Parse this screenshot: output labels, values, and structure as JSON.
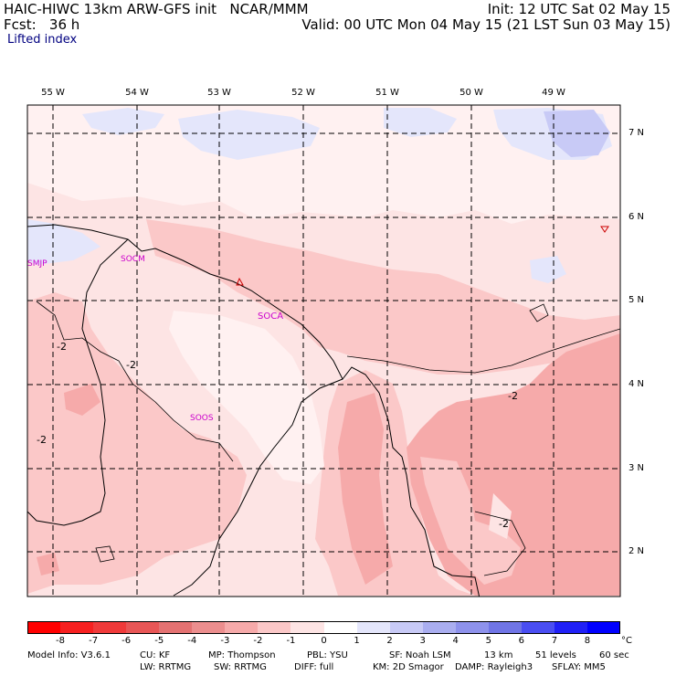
{
  "header": {
    "line1_left": "HAIC-HIWC 13km ARW-GFS init   NCAR/MMM",
    "line1_right": "Init: 12 UTC Sat 02 May 15",
    "line2_left": "Fcst:   36 h",
    "line2_right": "Valid: 00 UTC Mon 04 May 15 (21 LST Sun 03 May 15)",
    "field": "Lifted index"
  },
  "map": {
    "lon_labels": [
      "55 W",
      "54 W",
      "53 W",
      "52 W",
      "51 W",
      "50 W",
      "49 W"
    ],
    "lat_labels": [
      "7 N",
      "6 N",
      "5 N",
      "4 N",
      "3 N",
      "2 N"
    ],
    "stations": [
      "SMJP",
      "SOCM",
      "SOCA",
      "SOOS"
    ],
    "contour_labels": [
      "-2",
      "-2",
      "-2",
      "-2",
      "-2"
    ],
    "colors": {
      "land_neg1": "#fde4e4",
      "neg2": "#fbc8c8",
      "neg3": "#f6aaaa",
      "pos1": "#e4e6fb",
      "pos2": "#c8caf6",
      "station": "#cc00cc"
    }
  },
  "colorbar": {
    "labels": [
      "-8",
      "-7",
      "-6",
      "-5",
      "-4",
      "-3",
      "-2",
      "-1",
      "0",
      "1",
      "2",
      "3",
      "4",
      "5",
      "6",
      "7",
      "8"
    ],
    "unit": "°C",
    "colors": [
      "#ff0000",
      "#f72020",
      "#f03a3a",
      "#e85656",
      "#e47272",
      "#ec8e8e",
      "#f6aaaa",
      "#fbc8c8",
      "#fde4e4",
      "#ffffff",
      "#e4e6fb",
      "#c8caf6",
      "#aaaef0",
      "#8e92ec",
      "#7075e6",
      "#4a4ef2",
      "#2020f6",
      "#0000ff"
    ]
  },
  "info": {
    "line1": [
      "Model Info: V3.6.1",
      "CU: KF",
      "MP: Thompson",
      "PBL: YSU",
      "SF: Noah LSM",
      "13 km",
      "51 levels",
      "60 sec"
    ],
    "line2": [
      "LW: RRTMG",
      "SW: RRTMG",
      "DIFF: full",
      "KM: 2D Smagor",
      "DAMP: Rayleigh3",
      "SFLAY: MM5"
    ]
  }
}
